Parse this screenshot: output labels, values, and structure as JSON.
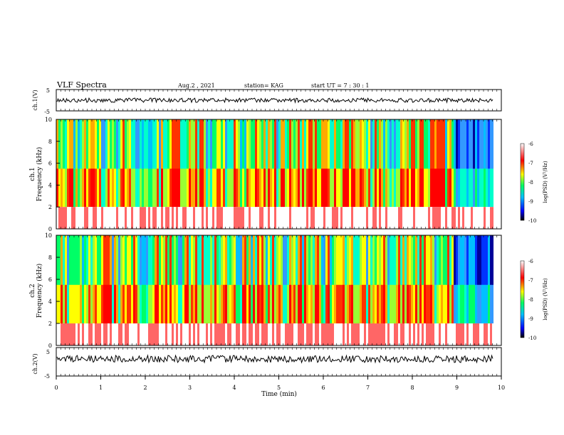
{
  "header": {
    "title": "VLF Spectra",
    "date": "Aug.2 , 2021",
    "station": "station= KAG",
    "start_ut": "start UT = 7 : 30 : 1"
  },
  "colors": {
    "background": "#ffffff",
    "axes": "#000000",
    "colormap": [
      "#000000",
      "#0000ff",
      "#00c0ff",
      "#00ff66",
      "#ffff00",
      "#ff0000",
      "#ffffff"
    ]
  },
  "chart_data": [
    {
      "id": "ch1-waveform",
      "type": "line",
      "ylabel": "ch.1(V)",
      "ylim": [
        -5,
        5
      ],
      "yticks": [
        "5",
        "-5"
      ],
      "xlim": [
        0,
        10
      ],
      "values_approx": "near 0 V throughout, small fluctuations"
    },
    {
      "id": "ch1-spectrogram",
      "type": "heatmap",
      "ylabel": "ch.1\nFrequency (kHz)",
      "ylim": [
        0,
        10
      ],
      "yticks": [
        "0",
        "2",
        "4",
        "6",
        "8",
        "10"
      ],
      "xlim": [
        0,
        10
      ],
      "colorbar": {
        "label": "log(PSD) (V²/Hz)",
        "range": [
          -10,
          -6
        ],
        "ticks": [
          "-6",
          "-7",
          "-8",
          "-9",
          "-10"
        ]
      }
    },
    {
      "id": "ch2-spectrogram",
      "type": "heatmap",
      "ylabel": "ch.2\nFrequency (kHz)",
      "ylim": [
        0,
        10
      ],
      "yticks": [
        "0",
        "2",
        "4",
        "6",
        "8",
        "10"
      ],
      "xlim": [
        0,
        10
      ],
      "colorbar": {
        "label": "log(PSD) (V²/Hz)",
        "range": [
          -10,
          -6
        ],
        "ticks": [
          "-6",
          "-7",
          "-8",
          "-9",
          "-10"
        ]
      }
    },
    {
      "id": "ch2-waveform",
      "type": "line",
      "ylabel": "ch.2(V)",
      "ylim": [
        -5,
        5
      ],
      "yticks": [
        "5",
        "-5"
      ],
      "xlim": [
        0,
        10
      ],
      "values_approx": "near 0 V throughout, small fluctuations"
    }
  ],
  "x_axis": {
    "label": "Time (min)",
    "ticks": [
      "0",
      "1",
      "2",
      "3",
      "4",
      "5",
      "6",
      "7",
      "8",
      "9",
      "10"
    ]
  }
}
